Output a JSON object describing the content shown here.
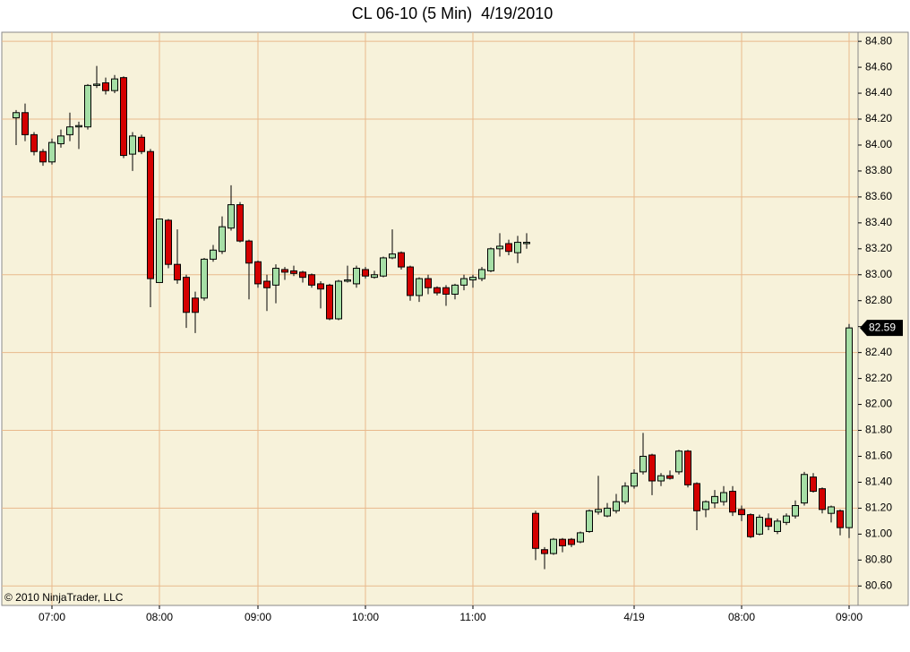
{
  "chart_data": {
    "type": "candlestick",
    "title": "CL 06-10 (5 Min)  4/19/2010",
    "copyright": "© 2010 NinjaTrader, LLC",
    "up_color": "#a6dfa6",
    "down_color": "#d40000",
    "background": "#f7f2da",
    "grid_color": "#e9b98c",
    "grid": true,
    "grid_every_nth_tick": 3,
    "xlim": [
      -1.6,
      94
    ],
    "xticks": [
      {
        "value": 4,
        "label": "07:00"
      },
      {
        "value": 16,
        "label": "08:00"
      },
      {
        "value": 27,
        "label": "09:00"
      },
      {
        "value": 39,
        "label": "10:00"
      },
      {
        "value": 51,
        "label": "11:00"
      },
      {
        "value": 69,
        "label": "4/19"
      },
      {
        "value": 81,
        "label": "08:00"
      },
      {
        "value": 93,
        "label": "09:00"
      }
    ],
    "ylim": [
      80.45,
      84.87
    ],
    "yticks": [
      {
        "value": 84.8,
        "label": "84.80"
      },
      {
        "value": 84.6,
        "label": "84.60"
      },
      {
        "value": 84.4,
        "label": "84.40"
      },
      {
        "value": 84.2,
        "label": "84.20"
      },
      {
        "value": 84.0,
        "label": "84.00"
      },
      {
        "value": 83.8,
        "label": "83.80"
      },
      {
        "value": 83.6,
        "label": "83.60"
      },
      {
        "value": 83.4,
        "label": "83.40"
      },
      {
        "value": 83.2,
        "label": "83.20"
      },
      {
        "value": 83.0,
        "label": "83.00"
      },
      {
        "value": 82.8,
        "label": "82.80"
      },
      {
        "value": 82.6,
        "label": "82.60"
      },
      {
        "value": 82.4,
        "label": "82.40"
      },
      {
        "value": 82.2,
        "label": "82.20"
      },
      {
        "value": 82.0,
        "label": "82.00"
      },
      {
        "value": 81.8,
        "label": "81.80"
      },
      {
        "value": 81.6,
        "label": "81.60"
      },
      {
        "value": 81.4,
        "label": "81.40"
      },
      {
        "value": 81.2,
        "label": "81.20"
      },
      {
        "value": 81.0,
        "label": "81.00"
      },
      {
        "value": 80.8,
        "label": "80.80"
      },
      {
        "value": 80.6,
        "label": "80.60"
      }
    ],
    "open": [
      84.21,
      84.25,
      84.08,
      83.95,
      83.87,
      84.01,
      84.08,
      84.14,
      84.14,
      84.46,
      84.48,
      84.42,
      84.52,
      83.93,
      84.06,
      83.95,
      82.94,
      83.42,
      83.08,
      82.98,
      82.82,
      82.82,
      83.12,
      83.18,
      83.36,
      83.54,
      83.26,
      83.1,
      82.95,
      82.92,
      83.04,
      83.03,
      83.02,
      83.0,
      82.93,
      82.92,
      82.66,
      82.95,
      82.93,
      83.04,
      82.98,
      82.99,
      83.13,
      83.17,
      83.06,
      82.84,
      82.97,
      82.9,
      82.9,
      82.85,
      82.92,
      82.96,
      82.97,
      83.03,
      83.2,
      83.24,
      83.17,
      83.24,
      81.16,
      80.88,
      80.85,
      80.96,
      80.96,
      80.94,
      81.02,
      81.17,
      81.14,
      81.18,
      81.25,
      81.37,
      81.48,
      81.61,
      81.41,
      81.45,
      81.48,
      81.64,
      81.39,
      81.19,
      81.24,
      81.25,
      81.33,
      81.19,
      81.15,
      81.0,
      81.12,
      81.02,
      81.09,
      81.14,
      81.24,
      81.44,
      81.35,
      81.16,
      81.18,
      81.05
    ],
    "high": [
      84.27,
      84.32,
      84.1,
      83.97,
      84.05,
      84.12,
      84.25,
      84.18,
      84.47,
      84.61,
      84.52,
      84.54,
      84.53,
      84.1,
      84.08,
      83.97,
      83.43,
      83.43,
      83.35,
      83.0,
      82.87,
      83.13,
      83.23,
      83.45,
      83.69,
      83.56,
      83.27,
      83.11,
      83.0,
      83.08,
      83.06,
      83.07,
      83.03,
      83.01,
      82.95,
      82.93,
      82.96,
      83.07,
      83.07,
      83.06,
      83.03,
      83.14,
      83.35,
      83.18,
      83.07,
      82.98,
      83.0,
      82.91,
      82.92,
      82.93,
      83.0,
      83.0,
      83.06,
      83.21,
      83.32,
      83.27,
      83.3,
      83.32,
      81.18,
      80.9,
      80.97,
      80.97,
      80.97,
      81.02,
      81.19,
      81.45,
      81.24,
      81.31,
      81.4,
      81.5,
      81.78,
      81.62,
      81.47,
      81.49,
      81.65,
      81.65,
      81.4,
      81.26,
      81.34,
      81.37,
      81.37,
      81.22,
      81.16,
      81.15,
      81.16,
      81.12,
      81.16,
      81.26,
      81.48,
      81.47,
      81.36,
      81.22,
      81.19,
      82.62
    ],
    "low": [
      84.0,
      84.03,
      83.92,
      83.84,
      83.85,
      83.98,
      84.03,
      83.97,
      84.12,
      84.44,
      84.39,
      84.4,
      83.9,
      83.8,
      83.93,
      82.75,
      82.94,
      83.05,
      82.93,
      82.59,
      82.55,
      82.8,
      83.1,
      83.16,
      83.34,
      83.25,
      82.81,
      82.9,
      82.72,
      82.78,
      82.96,
      82.99,
      82.94,
      82.9,
      82.74,
      82.65,
      82.65,
      82.94,
      82.9,
      82.97,
      82.97,
      82.98,
      83.12,
      83.04,
      82.8,
      82.79,
      82.85,
      82.84,
      82.76,
      82.81,
      82.88,
      82.9,
      82.95,
      83.02,
      83.14,
      83.15,
      83.09,
      83.2,
      80.8,
      80.73,
      80.84,
      80.86,
      80.9,
      80.93,
      81.01,
      81.15,
      81.13,
      81.16,
      81.23,
      81.35,
      81.46,
      81.3,
      81.37,
      81.42,
      81.46,
      81.36,
      81.03,
      81.13,
      81.2,
      81.22,
      81.14,
      81.1,
      80.97,
      80.99,
      81.03,
      81.0,
      81.07,
      81.12,
      81.22,
      81.32,
      81.16,
      81.09,
      80.99,
      80.97
    ],
    "close": [
      84.25,
      84.08,
      83.95,
      83.87,
      84.02,
      84.07,
      84.14,
      84.15,
      84.46,
      84.47,
      84.42,
      84.51,
      83.92,
      84.07,
      83.95,
      82.97,
      83.43,
      83.08,
      82.96,
      82.71,
      82.71,
      83.12,
      83.19,
      83.37,
      83.54,
      83.26,
      83.09,
      82.93,
      82.9,
      83.05,
      83.02,
      83.01,
      82.98,
      82.92,
      82.89,
      82.66,
      82.95,
      82.96,
      83.05,
      82.99,
      83.0,
      83.13,
      83.16,
      83.06,
      82.84,
      82.97,
      82.9,
      82.86,
      82.85,
      82.92,
      82.97,
      82.98,
      83.04,
      83.2,
      83.22,
      83.18,
      83.25,
      83.25,
      80.89,
      80.85,
      80.96,
      80.91,
      80.92,
      81.01,
      81.18,
      81.19,
      81.2,
      81.25,
      81.37,
      81.47,
      81.6,
      81.41,
      81.45,
      81.43,
      81.64,
      81.38,
      81.18,
      81.25,
      81.29,
      81.32,
      81.17,
      81.15,
      80.98,
      81.13,
      81.06,
      81.1,
      81.14,
      81.22,
      81.46,
      81.33,
      81.19,
      81.21,
      81.05,
      82.59
    ]
  }
}
